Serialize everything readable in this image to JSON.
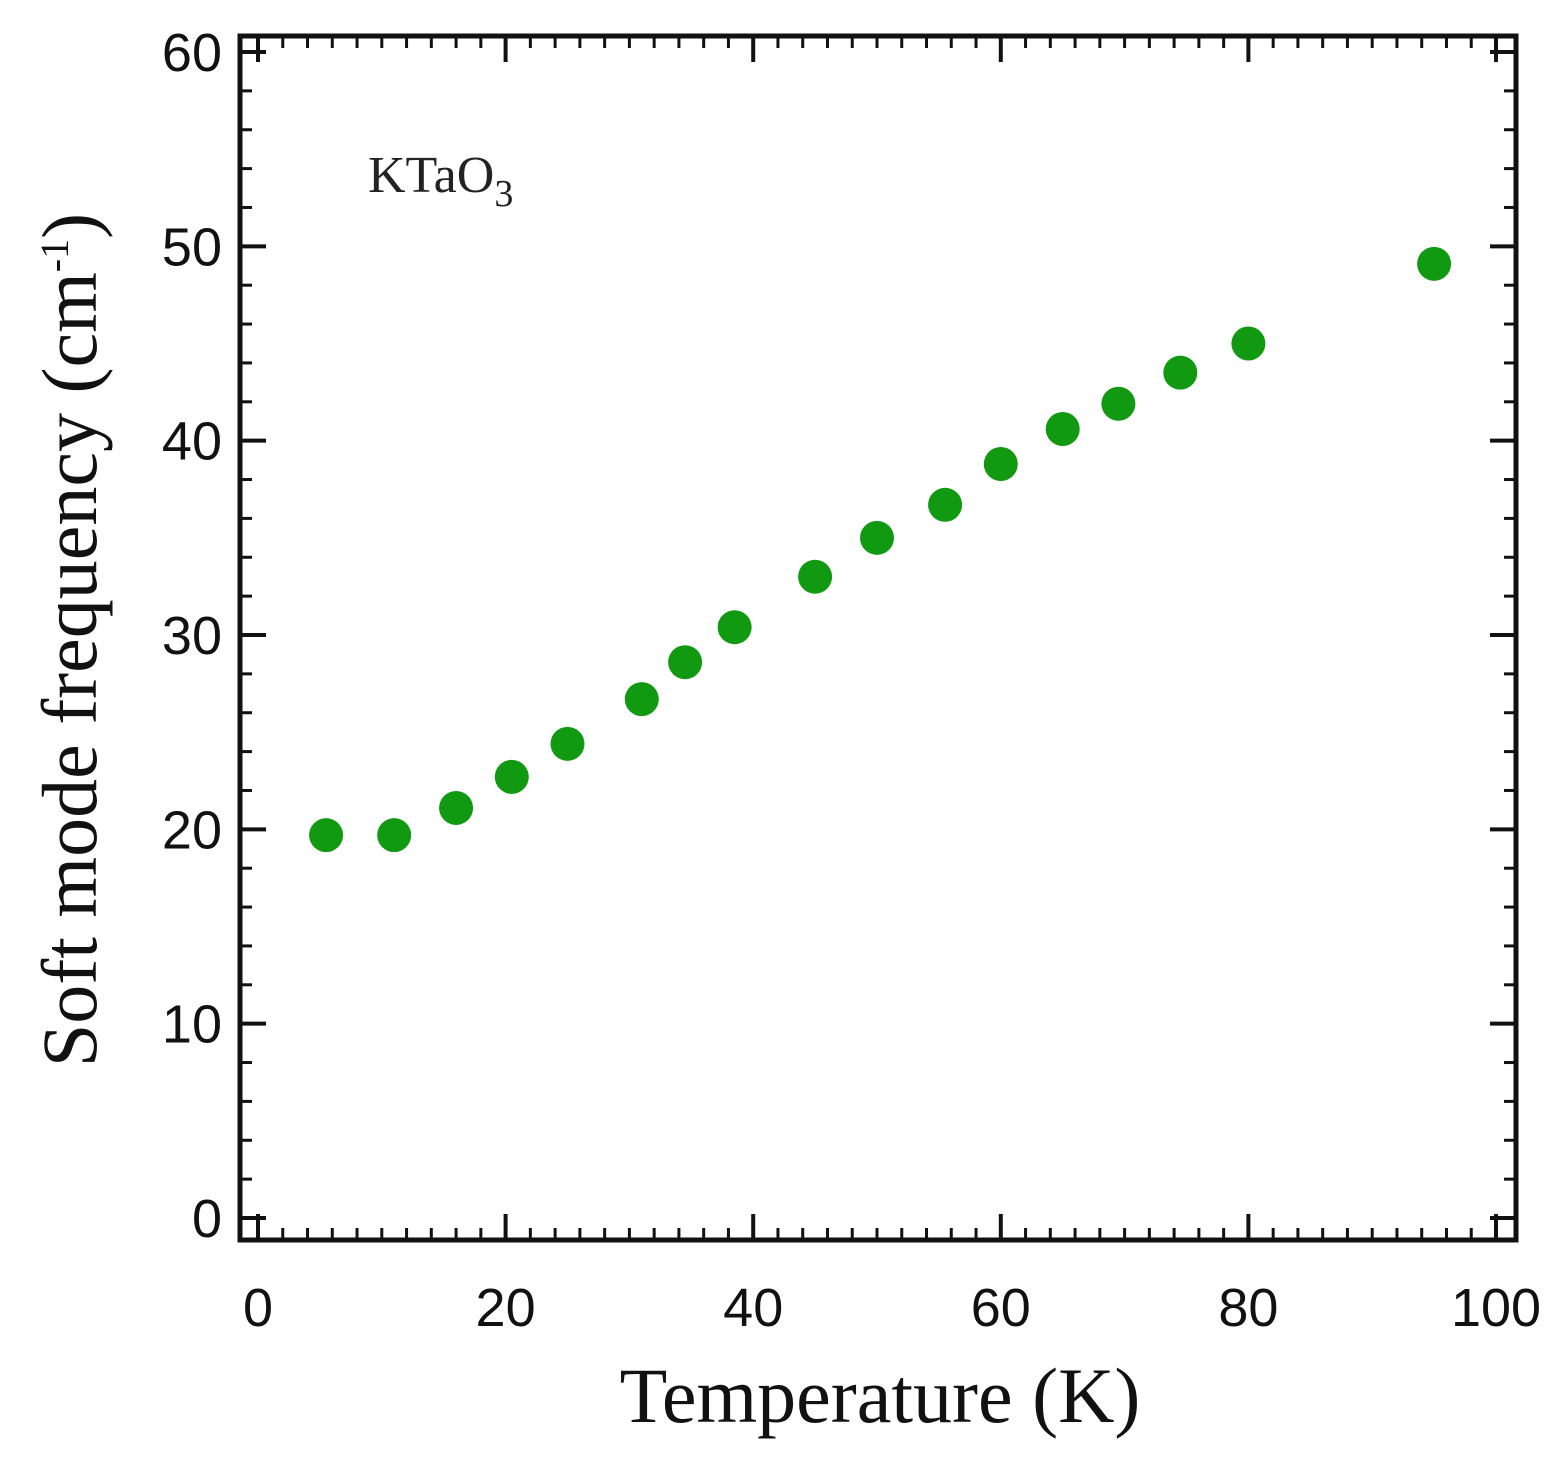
{
  "chart_data": {
    "type": "scatter",
    "xlabel": "Temperature (K)",
    "ylabel": {
      "main": "Soft mode frequency (cm",
      "sup": "-1",
      "close": ")"
    },
    "annotation": {
      "main": "KTaO",
      "sub": "3"
    },
    "xlim": [
      0,
      100
    ],
    "ylim": [
      0,
      60
    ],
    "xticks": [
      0,
      20,
      40,
      60,
      80,
      100
    ],
    "yticks": [
      0,
      10,
      20,
      30,
      40,
      50,
      60
    ],
    "marker_color": "#119911",
    "series": [
      {
        "name": "KTaO3",
        "x": [
          5.5,
          11,
          16,
          20.5,
          25,
          31,
          34.5,
          38.5,
          45,
          50,
          55.5,
          60,
          65,
          69.5,
          74.5,
          80,
          95
        ],
        "y": [
          19.7,
          19.7,
          21.1,
          22.7,
          24.4,
          26.7,
          28.6,
          30.4,
          33,
          35,
          36.7,
          38.8,
          40.6,
          41.9,
          43.5,
          45,
          49.1
        ]
      }
    ]
  }
}
